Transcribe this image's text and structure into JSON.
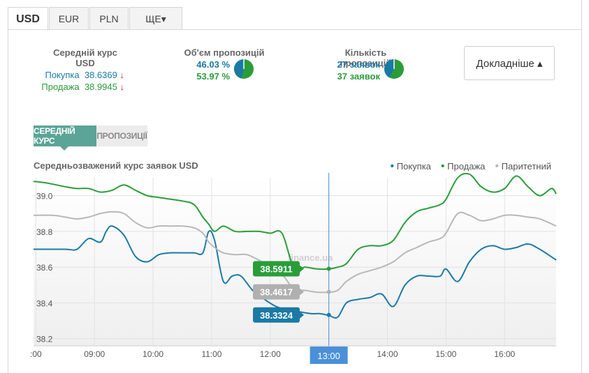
{
  "tabs": [
    "USD",
    "EUR",
    "PLN",
    "ЩЕ▾"
  ],
  "stats": {
    "avg_title": "Середній курс USD",
    "buy_label": "Покупка",
    "buy_value": "38.6369",
    "sell_label": "Продажа",
    "sell_value": "38.9945",
    "arrow": "↓",
    "volume_title": "Об'єм пропозицій",
    "volume_buy": "46.03 %",
    "volume_sell": "53.97 %",
    "count_title": "Кількість пропозицій",
    "count_buy": "27 заявок",
    "count_sell": "37 заявок"
  },
  "more_button": "Докладніше ▴",
  "subtabs": [
    "СЕРЕДНІЙ КУРС",
    "ПРОПОЗИЦІЇ"
  ],
  "watermark": "finance.ua",
  "colors": {
    "buy": "#1a7aa5",
    "sell": "#2a9d3a",
    "parity": "#b8b8b8",
    "cursor": "#4a90d9"
  },
  "chart_data": {
    "type": "line",
    "title": "Середньозважений курс заявок USD",
    "x_tick_labels": [
      ":00",
      "09:00",
      "10:00",
      "11:00",
      "12:00",
      "13:00",
      "14:00",
      "15:00",
      "16:00"
    ],
    "x_ticks": [
      8.0,
      9.0,
      10.0,
      11.0,
      12.0,
      13.0,
      14.0,
      15.0,
      16.0
    ],
    "xlim": [
      7.96,
      16.88
    ],
    "y_tick_labels": [
      "38.2",
      "38.4",
      "38.6",
      "38.8",
      "39.0"
    ],
    "y_ticks": [
      38.2,
      38.4,
      38.6,
      38.8,
      39.0
    ],
    "ylim": [
      38.16,
      39.1
    ],
    "grid": true,
    "legend_position": "top-right",
    "cursor": {
      "x": 13.0,
      "label": "13:00"
    },
    "tooltips": [
      {
        "series": "Продажа",
        "value": "38.5911"
      },
      {
        "series": "Паритетний",
        "value": "38.4617"
      },
      {
        "series": "Покупка",
        "value": "38.3324"
      }
    ],
    "series": [
      {
        "name": "Покупка",
        "x": [
          7.96,
          8.5,
          8.7,
          8.9,
          9.1,
          9.2,
          9.3,
          9.5,
          9.7,
          9.9,
          10.1,
          10.3,
          10.5,
          10.7,
          10.85,
          10.95,
          11.05,
          11.2,
          11.35,
          11.5,
          11.7,
          11.9,
          12.1,
          12.3,
          12.5,
          12.7,
          12.85,
          13.0,
          13.15,
          13.3,
          13.5,
          13.7,
          13.9,
          14.1,
          14.3,
          14.5,
          14.7,
          14.9,
          15.0,
          15.2,
          15.4,
          15.6,
          15.8,
          16.0,
          16.2,
          16.4,
          16.6,
          16.88
        ],
        "y": [
          38.7,
          38.7,
          38.7,
          38.76,
          38.74,
          38.8,
          38.83,
          38.78,
          38.66,
          38.63,
          38.67,
          38.68,
          38.68,
          38.68,
          38.68,
          38.8,
          38.75,
          38.52,
          38.55,
          38.55,
          38.47,
          38.42,
          38.38,
          38.36,
          38.35,
          38.34,
          38.34,
          38.33,
          38.32,
          38.4,
          38.42,
          38.43,
          38.45,
          38.38,
          38.5,
          38.55,
          38.55,
          38.55,
          38.59,
          38.52,
          38.63,
          38.7,
          38.72,
          38.7,
          38.71,
          38.73,
          38.7,
          38.64
        ]
      },
      {
        "name": "Продажа",
        "x": [
          7.96,
          8.2,
          8.5,
          8.7,
          8.9,
          9.1,
          9.3,
          9.5,
          9.7,
          9.9,
          10.1,
          10.3,
          10.5,
          10.7,
          10.85,
          10.95,
          11.05,
          11.2,
          11.4,
          11.6,
          11.8,
          12.0,
          12.2,
          12.4,
          12.6,
          12.8,
          13.0,
          13.15,
          13.3,
          13.5,
          13.7,
          13.9,
          14.1,
          14.3,
          14.5,
          14.7,
          14.9,
          15.0,
          15.2,
          15.4,
          15.6,
          15.8,
          16.0,
          16.2,
          16.4,
          16.6,
          16.8,
          16.88
        ],
        "y": [
          39.08,
          39.07,
          39.05,
          39.04,
          39.04,
          39.02,
          39.03,
          39.06,
          39.03,
          39.0,
          38.99,
          38.98,
          38.97,
          38.95,
          38.88,
          38.84,
          38.8,
          38.83,
          38.8,
          38.8,
          38.8,
          38.79,
          38.79,
          38.6,
          38.6,
          38.59,
          38.59,
          38.6,
          38.62,
          38.7,
          38.72,
          38.72,
          38.75,
          38.85,
          38.91,
          38.93,
          38.95,
          38.98,
          39.1,
          39.12,
          39.05,
          39.02,
          39.04,
          39.11,
          39.05,
          39.0,
          39.04,
          39.01
        ]
      },
      {
        "name": "Паритетний",
        "x": [
          7.96,
          8.3,
          8.5,
          8.7,
          8.9,
          9.1,
          9.3,
          9.5,
          9.7,
          9.9,
          10.1,
          10.3,
          10.5,
          10.7,
          10.85,
          10.95,
          11.05,
          11.2,
          11.4,
          11.6,
          11.8,
          12.0,
          12.2,
          12.4,
          12.6,
          12.8,
          13.0,
          13.15,
          13.3,
          13.5,
          13.7,
          13.9,
          14.1,
          14.3,
          14.5,
          14.7,
          14.9,
          15.0,
          15.2,
          15.4,
          15.6,
          15.8,
          16.0,
          16.2,
          16.4,
          16.6,
          16.88
        ],
        "y": [
          38.89,
          38.89,
          38.88,
          38.87,
          38.88,
          38.9,
          38.91,
          38.9,
          38.85,
          38.82,
          38.83,
          38.83,
          38.83,
          38.82,
          38.79,
          38.74,
          38.71,
          38.68,
          38.67,
          38.67,
          38.64,
          38.6,
          38.56,
          38.48,
          38.47,
          38.46,
          38.46,
          38.47,
          38.52,
          38.56,
          38.58,
          38.6,
          38.63,
          38.68,
          38.71,
          38.74,
          38.76,
          38.79,
          38.9,
          38.89,
          38.86,
          38.87,
          38.89,
          38.89,
          38.88,
          38.87,
          38.83
        ]
      }
    ]
  }
}
